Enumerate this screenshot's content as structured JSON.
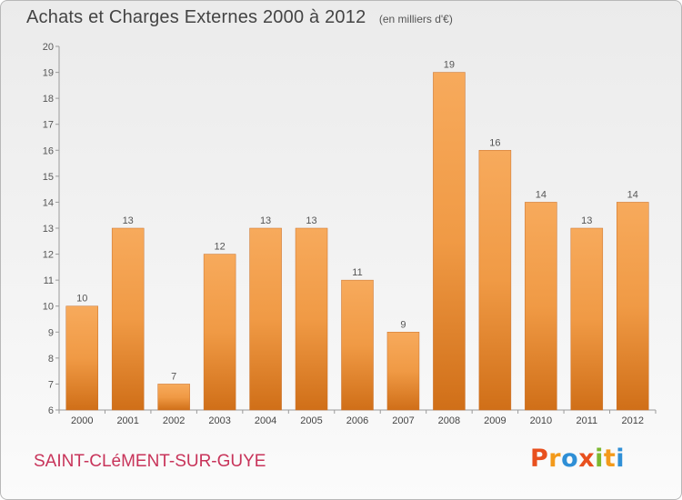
{
  "header": {
    "title": "Achats et Charges Externes 2000 à 2012",
    "unit": "(en milliers d'€)"
  },
  "footer": {
    "commune": "SAINT-CLéMENT-SUR-GUYE",
    "brand": {
      "letters": [
        "P",
        "r",
        "o",
        "x",
        "i",
        "t",
        "i"
      ],
      "colors": [
        "#e8501e",
        "#f39a1b",
        "#2f8fd6",
        "#e8501e",
        "#7cb82f",
        "#f39a1b",
        "#2f8fd6"
      ]
    }
  },
  "chart_data": {
    "type": "bar",
    "categories": [
      "2000",
      "2001",
      "2002",
      "2003",
      "2004",
      "2005",
      "2006",
      "2007",
      "2008",
      "2009",
      "2010",
      "2011",
      "2012"
    ],
    "values": [
      10,
      13,
      7,
      12,
      13,
      13,
      11,
      9,
      19,
      16,
      14,
      13,
      14
    ],
    "ylim": [
      6,
      20
    ],
    "yticks": [
      6,
      7,
      8,
      9,
      10,
      11,
      12,
      13,
      14,
      15,
      16,
      17,
      18,
      19,
      20
    ],
    "grid": false,
    "data_labels": true,
    "bar_color": "#f09a45",
    "bar_color_light": "#f7aa5c",
    "bar_color_dark": "#d06f18"
  }
}
